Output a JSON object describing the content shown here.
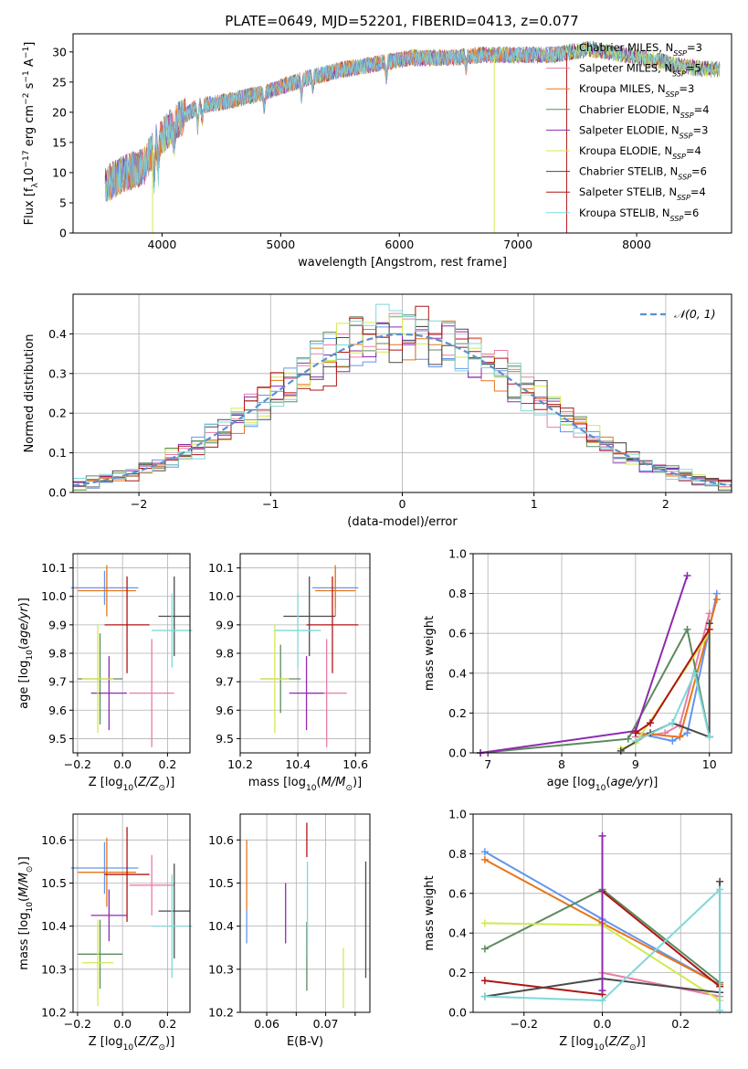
{
  "figure_title": "PLATE=0649, MJD=52201, FIBERID=0413, z=0.077",
  "colors": {
    "chabrier_miles": "#6495ed",
    "salpeter_miles": "#e97ba8",
    "kroupa_miles": "#e8751a",
    "chabrier_elodie": "#5b8a5e",
    "salpeter_elodie": "#8e2bb0",
    "kroupa_elodie": "#d4e94f",
    "chabrier_stelib": "#4a4a4a",
    "salpeter_stelib": "#b01515",
    "kroupa_stelib": "#7fd8d8"
  },
  "chart_data": [
    {
      "id": "spectrum",
      "type": "line",
      "title": "PLATE=0649, MJD=52201, FIBERID=0413, z=0.077",
      "xlabel": "wavelength [Angstrom, rest frame]",
      "ylabel": "Flux [f_λ 10^-17 erg cm^-2 s^-1 A^-1]",
      "xlim": [
        3250,
        8800
      ],
      "ylim": [
        0,
        33
      ],
      "xticks": [
        4000,
        5000,
        6000,
        7000,
        8000
      ],
      "yticks": [
        0,
        5,
        10,
        15,
        20,
        25,
        30
      ],
      "grid": false,
      "legend_position": "top-right",
      "legend": [
        {
          "label": "Chabrier MILES, N",
          "sub": "SSP",
          "eq": "=3",
          "color_key": "chabrier_miles"
        },
        {
          "label": "Salpeter MILES, N",
          "sub": "SSP",
          "eq": "=5",
          "color_key": "salpeter_miles"
        },
        {
          "label": "Kroupa MILES, N",
          "sub": "SSP",
          "eq": "=3",
          "color_key": "kroupa_miles"
        },
        {
          "label": "Chabrier ELODIE, N",
          "sub": "SSP",
          "eq": "=4",
          "color_key": "chabrier_elodie"
        },
        {
          "label": "Salpeter ELODIE, N",
          "sub": "SSP",
          "eq": "=3",
          "color_key": "salpeter_elodie"
        },
        {
          "label": "Kroupa ELODIE, N",
          "sub": "SSP",
          "eq": "=4",
          "color_key": "kroupa_elodie"
        },
        {
          "label": "Chabrier STELIB, N",
          "sub": "SSP",
          "eq": "=6",
          "color_key": "chabrier_stelib"
        },
        {
          "label": "Salpeter STELIB, N",
          "sub": "SSP",
          "eq": "=4",
          "color_key": "salpeter_stelib"
        },
        {
          "label": "Kroupa STELIB, N",
          "sub": "SSP",
          "eq": "=6",
          "color_key": "kroupa_stelib"
        }
      ],
      "continuum": [
        [
          3520,
          8
        ],
        [
          3700,
          10
        ],
        [
          3850,
          11
        ],
        [
          3950,
          15
        ],
        [
          4100,
          18
        ],
        [
          4300,
          21
        ],
        [
          4600,
          22
        ],
        [
          4900,
          23.5
        ],
        [
          5200,
          25.5
        ],
        [
          5500,
          27
        ],
        [
          5800,
          28
        ],
        [
          6100,
          29
        ],
        [
          6400,
          29
        ],
        [
          6700,
          29.5
        ],
        [
          7000,
          29.5
        ],
        [
          7300,
          29.5
        ],
        [
          7600,
          30.5
        ],
        [
          7900,
          29.5
        ],
        [
          8200,
          28.5
        ],
        [
          8400,
          27.5
        ],
        [
          8700,
          27
        ]
      ],
      "dropouts": [
        {
          "x": 3920,
          "to": 0,
          "color_key": "kroupa_elodie"
        },
        {
          "x": 6800,
          "to": 0,
          "color_key": "kroupa_elodie"
        },
        {
          "x": 7410,
          "to": 0,
          "color_key": "salpeter_stelib"
        }
      ]
    },
    {
      "id": "residuals",
      "type": "line",
      "xlabel": "(data-model)/error",
      "ylabel": "Normed distribution",
      "xlim": [
        -2.5,
        2.5
      ],
      "ylim": [
        0,
        0.5
      ],
      "xticks": [
        -2,
        -1,
        0,
        1,
        2
      ],
      "yticks": [
        0.0,
        0.1,
        0.2,
        0.3,
        0.4
      ],
      "grid": true,
      "legend_position": "top-right",
      "legend": [
        {
          "label": "𝒩(0, 1)",
          "color": "#5b8fd0"
        }
      ],
      "bin_width": 0.1,
      "x_start": -2.5
    },
    {
      "id": "age_vs_Z",
      "type": "scatter",
      "xlabel": "Z [log10(Z/Z☉)]",
      "ylabel": "age  [log10(age/yr)]",
      "xlim": [
        -0.22,
        0.3
      ],
      "ylim": [
        9.45,
        10.15
      ],
      "xticks": [
        -0.2,
        0.0,
        0.2
      ],
      "yticks": [
        9.5,
        9.6,
        9.7,
        9.8,
        9.9,
        10.0,
        10.1
      ],
      "grid": true,
      "points": [
        {
          "color_key": "chabrier_miles",
          "x": -0.08,
          "y": 10.03,
          "xerr": 0.15,
          "yerr": 0.06
        },
        {
          "color_key": "salpeter_miles",
          "x": 0.13,
          "y": 9.66,
          "xerr": 0.1,
          "yerr": 0.19
        },
        {
          "color_key": "kroupa_miles",
          "x": -0.07,
          "y": 10.02,
          "xerr": 0.13,
          "yerr": 0.09
        },
        {
          "color_key": "chabrier_elodie",
          "x": -0.1,
          "y": 9.71,
          "xerr": 0.1,
          "yerr": 0.16
        },
        {
          "color_key": "salpeter_elodie",
          "x": -0.06,
          "y": 9.66,
          "xerr": 0.08,
          "yerr": 0.13
        },
        {
          "color_key": "kroupa_elodie",
          "x": -0.11,
          "y": 9.71,
          "xerr": 0.07,
          "yerr": 0.19
        },
        {
          "color_key": "chabrier_stelib",
          "x": 0.23,
          "y": 9.93,
          "xerr": 0.07,
          "yerr": 0.14
        },
        {
          "color_key": "salpeter_stelib",
          "x": 0.02,
          "y": 9.9,
          "xerr": 0.1,
          "yerr": 0.17
        },
        {
          "color_key": "kroupa_stelib",
          "x": 0.22,
          "y": 9.88,
          "xerr": 0.09,
          "yerr": 0.13
        }
      ]
    },
    {
      "id": "age_vs_mass",
      "type": "scatter",
      "xlabel": "mass [log10(M/M☉)]",
      "ylabel": "",
      "xlim": [
        10.2,
        10.65
      ],
      "ylim": [
        9.45,
        10.15
      ],
      "xticks": [
        10.2,
        10.4,
        10.6
      ],
      "yticks": [
        9.5,
        9.6,
        9.7,
        9.8,
        9.9,
        10.0,
        10.1
      ],
      "grid": true,
      "points": [
        {
          "color_key": "chabrier_miles",
          "x": 10.53,
          "y": 10.03,
          "xerr": 0.08,
          "yerr": 0.07
        },
        {
          "color_key": "salpeter_miles",
          "x": 10.5,
          "y": 9.66,
          "xerr": 0.07,
          "yerr": 0.19
        },
        {
          "color_key": "kroupa_miles",
          "x": 10.53,
          "y": 10.02,
          "xerr": 0.07,
          "yerr": 0.09
        },
        {
          "color_key": "chabrier_elodie",
          "x": 10.34,
          "y": 9.71,
          "xerr": 0.07,
          "yerr": 0.12
        },
        {
          "color_key": "salpeter_elodie",
          "x": 10.43,
          "y": 9.66,
          "xerr": 0.06,
          "yerr": 0.13
        },
        {
          "color_key": "kroupa_elodie",
          "x": 10.32,
          "y": 9.71,
          "xerr": 0.05,
          "yerr": 0.19
        },
        {
          "color_key": "chabrier_stelib",
          "x": 10.44,
          "y": 9.93,
          "xerr": 0.09,
          "yerr": 0.14
        },
        {
          "color_key": "salpeter_stelib",
          "x": 10.52,
          "y": 9.9,
          "xerr": 0.09,
          "yerr": 0.17
        },
        {
          "color_key": "kroupa_stelib",
          "x": 10.4,
          "y": 9.88,
          "xerr": 0.08,
          "yerr": 0.13
        }
      ]
    },
    {
      "id": "weight_vs_age",
      "type": "line",
      "xlabel": "age  [log10(age/yr)]",
      "ylabel": "mass weight",
      "xlim": [
        6.8,
        10.3
      ],
      "ylim": [
        0.0,
        1.0
      ],
      "xticks": [
        7,
        8,
        9,
        10
      ],
      "yticks": [
        0.0,
        0.2,
        0.4,
        0.6,
        0.8,
        1.0
      ],
      "grid": true,
      "series": [
        {
          "color_key": "chabrier_miles",
          "x": [
            9.0,
            9.5,
            9.7,
            10.1
          ],
          "y": [
            0.1,
            0.06,
            0.1,
            0.8
          ]
        },
        {
          "color_key": "salpeter_miles",
          "x": [
            9.0,
            9.4,
            9.6,
            10.0
          ],
          "y": [
            0.08,
            0.1,
            0.14,
            0.7
          ]
        },
        {
          "color_key": "kroupa_miles",
          "x": [
            9.0,
            9.6,
            10.1
          ],
          "y": [
            0.1,
            0.08,
            0.77
          ]
        },
        {
          "color_key": "chabrier_elodie",
          "x": [
            6.9,
            8.9,
            9.7,
            10.0
          ],
          "y": [
            0.0,
            0.07,
            0.62,
            0.08
          ]
        },
        {
          "color_key": "salpeter_elodie",
          "x": [
            6.9,
            9.0,
            9.7
          ],
          "y": [
            0.0,
            0.11,
            0.89
          ]
        },
        {
          "color_key": "kroupa_elodie",
          "x": [
            8.8,
            9.0,
            10.0
          ],
          "y": [
            0.02,
            0.05,
            0.6
          ]
        },
        {
          "color_key": "chabrier_stelib",
          "x": [
            8.8,
            9.2,
            9.5,
            10.0,
            10.0
          ],
          "y": [
            0.01,
            0.1,
            0.15,
            0.08,
            0.65
          ]
        },
        {
          "color_key": "salpeter_stelib",
          "x": [
            9.0,
            9.2,
            10.0
          ],
          "y": [
            0.1,
            0.15,
            0.62
          ]
        },
        {
          "color_key": "kroupa_stelib",
          "x": [
            9.0,
            9.5,
            9.8,
            10.0
          ],
          "y": [
            0.06,
            0.15,
            0.4,
            0.08
          ]
        }
      ]
    },
    {
      "id": "mass_vs_Z",
      "type": "scatter",
      "xlabel": "Z [log10(Z/Z☉)]",
      "ylabel": "mass [log10(M/M☉)]",
      "xlim": [
        -0.22,
        0.3
      ],
      "ylim": [
        10.2,
        10.66
      ],
      "xticks": [
        -0.2,
        0.0,
        0.2
      ],
      "yticks": [
        10.2,
        10.3,
        10.4,
        10.5,
        10.6
      ],
      "grid": true,
      "points": [
        {
          "color_key": "chabrier_miles",
          "x": -0.08,
          "y": 10.535,
          "xerr": 0.15,
          "yerr": 0.06
        },
        {
          "color_key": "salpeter_miles",
          "x": 0.13,
          "y": 10.495,
          "xerr": 0.1,
          "yerr": 0.07
        },
        {
          "color_key": "kroupa_miles",
          "x": -0.07,
          "y": 10.525,
          "xerr": 0.13,
          "yerr": 0.08
        },
        {
          "color_key": "chabrier_elodie",
          "x": -0.1,
          "y": 10.335,
          "xerr": 0.1,
          "yerr": 0.08
        },
        {
          "color_key": "salpeter_elodie",
          "x": -0.06,
          "y": 10.425,
          "xerr": 0.08,
          "yerr": 0.06
        },
        {
          "color_key": "kroupa_elodie",
          "x": -0.11,
          "y": 10.315,
          "xerr": 0.07,
          "yerr": 0.1
        },
        {
          "color_key": "chabrier_stelib",
          "x": 0.23,
          "y": 10.435,
          "xerr": 0.07,
          "yerr": 0.11
        },
        {
          "color_key": "salpeter_stelib",
          "x": 0.02,
          "y": 10.52,
          "xerr": 0.1,
          "yerr": 0.11
        },
        {
          "color_key": "kroupa_stelib",
          "x": 0.22,
          "y": 10.4,
          "xerr": 0.09,
          "yerr": 0.12
        }
      ]
    },
    {
      "id": "mass_vs_ebv",
      "type": "scatter",
      "xlabel": "E(B-V)",
      "ylabel": "",
      "xlim": [
        0.0555,
        0.0775
      ],
      "ylim": [
        10.2,
        10.66
      ],
      "xticks": [
        0.06,
        0.065,
        0.07,
        0.075
      ],
      "xtick_labels": [
        "0.06",
        "",
        "0.07",
        ""
      ],
      "yticks": [
        10.2,
        10.3,
        10.4,
        10.5,
        10.6
      ],
      "grid": true,
      "points": [
        {
          "color_key": "chabrier_miles",
          "x": 0.0566,
          "y": 10.4,
          "yerr": 0.04
        },
        {
          "color_key": "kroupa_miles",
          "x": 0.0566,
          "y": 10.52,
          "yerr": 0.08
        },
        {
          "color_key": "salpeter_elodie",
          "x": 0.0632,
          "y": 10.43,
          "yerr": 0.07
        },
        {
          "color_key": "salpeter_stelib",
          "x": 0.0668,
          "y": 10.6,
          "yerr": 0.04
        },
        {
          "color_key": "chabrier_elodie",
          "x": 0.0668,
          "y": 10.33,
          "yerr": 0.08
        },
        {
          "color_key": "kroupa_stelib",
          "x": 0.0669,
          "y": 10.44,
          "yerr": 0.11
        },
        {
          "color_key": "kroupa_elodie",
          "x": 0.073,
          "y": 10.28,
          "yerr": 0.07
        },
        {
          "color_key": "chabrier_stelib",
          "x": 0.0768,
          "y": 10.415,
          "yerr": 0.135
        }
      ]
    },
    {
      "id": "weight_vs_Z",
      "type": "line",
      "xlabel": "Z [log10(Z/Z☉)]",
      "ylabel": "mass weight",
      "xlim": [
        -0.33,
        0.33
      ],
      "ylim": [
        0.0,
        1.0
      ],
      "xticks": [
        -0.2,
        0.0,
        0.2
      ],
      "yticks": [
        0.0,
        0.2,
        0.4,
        0.6,
        0.8,
        1.0
      ],
      "grid": true,
      "series": [
        {
          "color_key": "chabrier_miles",
          "x": [
            -0.3,
            0.0,
            0.3
          ],
          "y": [
            0.81,
            0.47,
            0.14
          ]
        },
        {
          "color_key": "kroupa_miles",
          "x": [
            -0.3,
            0.0,
            0.3
          ],
          "y": [
            0.77,
            0.45,
            0.14
          ]
        },
        {
          "color_key": "salpeter_miles",
          "x": [
            0.0,
            0.3
          ],
          "y": [
            0.2,
            0.08
          ]
        },
        {
          "color_key": "chabrier_elodie",
          "x": [
            -0.3,
            0.0,
            0.3
          ],
          "y": [
            0.32,
            0.62,
            0.15
          ]
        },
        {
          "color_key": "kroupa_elodie",
          "x": [
            -0.3,
            0.0,
            0.3
          ],
          "y": [
            0.45,
            0.44,
            0.06
          ]
        },
        {
          "color_key": "salpeter_stelib",
          "x": [
            -0.3,
            0.0,
            0.0,
            0.3
          ],
          "y": [
            0.16,
            0.09,
            0.61,
            0.13
          ]
        },
        {
          "color_key": "chabrier_stelib",
          "x": [
            -0.3,
            0.0,
            0.3,
            0.3
          ],
          "y": [
            0.08,
            0.17,
            0.1,
            0.66
          ]
        },
        {
          "color_key": "salpeter_elodie",
          "x": [
            0.0,
            0.0
          ],
          "y": [
            0.11,
            0.89
          ]
        },
        {
          "color_key": "kroupa_stelib",
          "x": [
            -0.3,
            0.0,
            0.3,
            0.3
          ],
          "y": [
            0.08,
            0.06,
            0.62,
            0.01
          ]
        }
      ]
    }
  ]
}
